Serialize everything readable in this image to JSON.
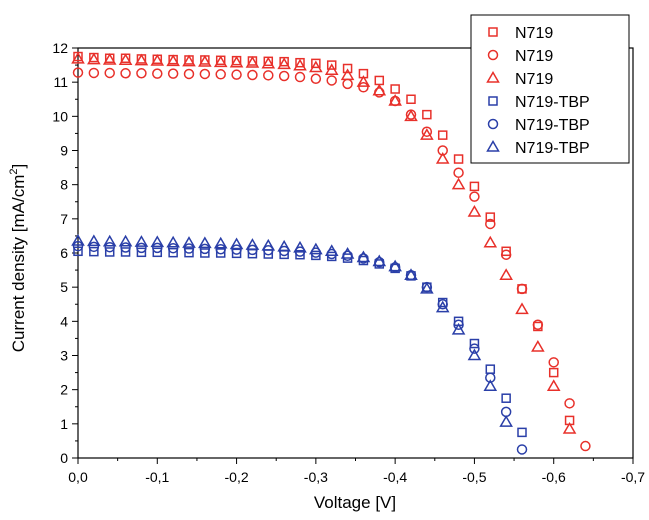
{
  "chart_data": {
    "type": "scatter",
    "xlabel": "Voltage [V]",
    "ylabel": "Current density [mA/cm",
    "ylabel_sup": "2",
    "ylabel_end": "]",
    "xlim": [
      0.0,
      -0.7
    ],
    "ylim": [
      0,
      12
    ],
    "x_ticks": [
      0.0,
      -0.1,
      -0.2,
      -0.3,
      -0.4,
      -0.5,
      -0.6,
      -0.7
    ],
    "x_tick_labels": [
      "0,0",
      "-0,1",
      "-0,2",
      "-0,3",
      "-0,4",
      "-0,5",
      "-0,6",
      "-0,7"
    ],
    "y_ticks": [
      0,
      1,
      2,
      3,
      4,
      5,
      6,
      7,
      8,
      9,
      10,
      11,
      12
    ],
    "y_tick_labels": [
      "0",
      "1",
      "2",
      "3",
      "4",
      "5",
      "6",
      "7",
      "8",
      "9",
      "10",
      "11",
      "12"
    ],
    "grid": false,
    "legend_position": "top-right",
    "series": [
      {
        "name": "N719",
        "marker": "square",
        "color": "#e8302a",
        "x": [
          0,
          -0.02,
          -0.04,
          -0.06,
          -0.08,
          -0.1,
          -0.12,
          -0.14,
          -0.16,
          -0.18,
          -0.2,
          -0.22,
          -0.24,
          -0.26,
          -0.28,
          -0.3,
          -0.32,
          -0.34,
          -0.36,
          -0.38,
          -0.4,
          -0.42,
          -0.44,
          -0.46,
          -0.48,
          -0.5,
          -0.52,
          -0.54,
          -0.56,
          -0.58,
          -0.6,
          -0.62
        ],
        "y": [
          11.75,
          11.72,
          11.7,
          11.7,
          11.68,
          11.67,
          11.66,
          11.65,
          11.65,
          11.64,
          11.63,
          11.62,
          11.61,
          11.6,
          11.57,
          11.55,
          11.5,
          11.4,
          11.25,
          11.05,
          10.8,
          10.5,
          10.05,
          9.45,
          8.75,
          7.95,
          7.05,
          6.05,
          4.95,
          3.85,
          2.5,
          1.1
        ]
      },
      {
        "name": "N719",
        "marker": "circle",
        "color": "#e8302a",
        "x": [
          0,
          -0.02,
          -0.04,
          -0.06,
          -0.08,
          -0.1,
          -0.12,
          -0.14,
          -0.16,
          -0.18,
          -0.2,
          -0.22,
          -0.24,
          -0.26,
          -0.28,
          -0.3,
          -0.32,
          -0.34,
          -0.36,
          -0.38,
          -0.4,
          -0.42,
          -0.44,
          -0.46,
          -0.48,
          -0.5,
          -0.52,
          -0.54,
          -0.56,
          -0.58,
          -0.6,
          -0.62,
          -0.64
        ],
        "y": [
          11.28,
          11.27,
          11.27,
          11.26,
          11.26,
          11.25,
          11.25,
          11.24,
          11.24,
          11.23,
          11.22,
          11.21,
          11.2,
          11.18,
          11.15,
          11.1,
          11.05,
          10.95,
          10.85,
          10.7,
          10.45,
          10.05,
          9.55,
          9.0,
          8.35,
          7.65,
          6.85,
          5.95,
          4.95,
          3.9,
          2.8,
          1.6,
          0.35
        ]
      },
      {
        "name": "N719",
        "marker": "triangle",
        "color": "#e8302a",
        "x": [
          0,
          -0.02,
          -0.04,
          -0.06,
          -0.08,
          -0.1,
          -0.12,
          -0.14,
          -0.16,
          -0.18,
          -0.2,
          -0.22,
          -0.24,
          -0.26,
          -0.28,
          -0.3,
          -0.32,
          -0.34,
          -0.36,
          -0.38,
          -0.4,
          -0.42,
          -0.44,
          -0.46,
          -0.48,
          -0.5,
          -0.52,
          -0.54,
          -0.56,
          -0.58,
          -0.6,
          -0.62
        ],
        "y": [
          11.68,
          11.66,
          11.65,
          11.64,
          11.63,
          11.62,
          11.61,
          11.6,
          11.59,
          11.58,
          11.57,
          11.56,
          11.54,
          11.52,
          11.48,
          11.43,
          11.35,
          11.2,
          11.0,
          10.75,
          10.45,
          10.0,
          9.45,
          8.75,
          8.0,
          7.2,
          6.3,
          5.35,
          4.35,
          3.25,
          2.1,
          0.85
        ]
      },
      {
        "name": "N719-TBP",
        "marker": "square",
        "color": "#2a3fa8",
        "x": [
          0,
          -0.02,
          -0.04,
          -0.06,
          -0.08,
          -0.1,
          -0.12,
          -0.14,
          -0.16,
          -0.18,
          -0.2,
          -0.22,
          -0.24,
          -0.26,
          -0.28,
          -0.3,
          -0.32,
          -0.34,
          -0.36,
          -0.38,
          -0.4,
          -0.42,
          -0.44,
          -0.46,
          -0.48,
          -0.5,
          -0.52,
          -0.54,
          -0.56
        ],
        "y": [
          6.05,
          6.04,
          6.03,
          6.03,
          6.02,
          6.02,
          6.01,
          6.01,
          6.0,
          6.0,
          5.99,
          5.98,
          5.97,
          5.96,
          5.95,
          5.93,
          5.9,
          5.85,
          5.78,
          5.68,
          5.55,
          5.33,
          5.0,
          4.55,
          4.0,
          3.35,
          2.6,
          1.75,
          0.75
        ]
      },
      {
        "name": "N719-TBP",
        "marker": "circle",
        "color": "#2a3fa8",
        "x": [
          0,
          -0.02,
          -0.04,
          -0.06,
          -0.08,
          -0.1,
          -0.12,
          -0.14,
          -0.16,
          -0.18,
          -0.2,
          -0.22,
          -0.24,
          -0.26,
          -0.28,
          -0.3,
          -0.32,
          -0.34,
          -0.36,
          -0.38,
          -0.4,
          -0.42,
          -0.44,
          -0.46,
          -0.48,
          -0.5,
          -0.52,
          -0.54,
          -0.56
        ],
        "y": [
          6.2,
          6.18,
          6.17,
          6.16,
          6.15,
          6.15,
          6.14,
          6.13,
          6.12,
          6.11,
          6.1,
          6.09,
          6.08,
          6.06,
          6.04,
          6.01,
          5.97,
          5.92,
          5.84,
          5.73,
          5.58,
          5.35,
          5.0,
          4.5,
          3.9,
          3.2,
          2.35,
          1.35,
          0.25
        ]
      },
      {
        "name": "N719-TBP",
        "marker": "triangle",
        "color": "#2a3fa8",
        "x": [
          0,
          -0.02,
          -0.04,
          -0.06,
          -0.08,
          -0.1,
          -0.12,
          -0.14,
          -0.16,
          -0.18,
          -0.2,
          -0.22,
          -0.24,
          -0.26,
          -0.28,
          -0.3,
          -0.32,
          -0.34,
          -0.36,
          -0.38,
          -0.4,
          -0.42,
          -0.44,
          -0.46,
          -0.48,
          -0.5,
          -0.52,
          -0.54
        ],
        "y": [
          6.35,
          6.34,
          6.33,
          6.33,
          6.32,
          6.31,
          6.3,
          6.29,
          6.28,
          6.27,
          6.25,
          6.23,
          6.21,
          6.18,
          6.15,
          6.1,
          6.05,
          5.97,
          5.87,
          5.75,
          5.6,
          5.35,
          4.95,
          4.4,
          3.75,
          3.0,
          2.1,
          1.05
        ]
      }
    ]
  }
}
